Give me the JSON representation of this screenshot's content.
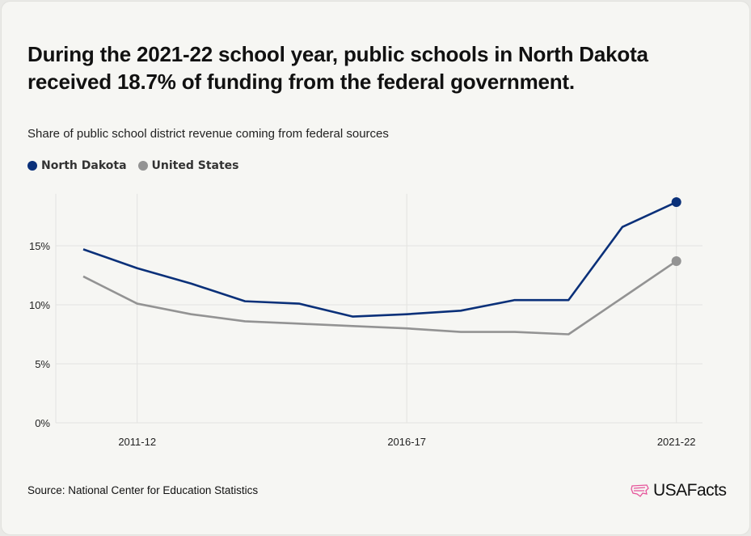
{
  "title": "During the 2021-22 school year, public schools in North Dakota received 18.7% of funding from the federal government.",
  "subtitle": "Share of public school district revenue coming from federal sources",
  "source": "Source: National Center for Education Statistics",
  "logo": "USAFacts",
  "chart_data": {
    "type": "line",
    "x": [
      "2010-11",
      "2011-12",
      "2012-13",
      "2013-14",
      "2014-15",
      "2015-16",
      "2016-17",
      "2017-18",
      "2018-19",
      "2019-20",
      "2020-21",
      "2021-22"
    ],
    "x_tick_labels": [
      "2011-12",
      "2016-17",
      "2021-22"
    ],
    "y_tick_labels": [
      "0%",
      "5%",
      "10%",
      "15%"
    ],
    "ylim": [
      0,
      19.4
    ],
    "grid": true,
    "legend_placement": "top-left",
    "series": [
      {
        "name": "North Dakota",
        "color": "#0a3079",
        "values": [
          14.7,
          13.1,
          11.8,
          10.3,
          10.1,
          9.0,
          9.2,
          9.5,
          10.4,
          10.4,
          16.6,
          18.7
        ]
      },
      {
        "name": "United States",
        "color": "#939393",
        "values": [
          12.4,
          10.1,
          9.2,
          8.6,
          8.4,
          8.2,
          8.0,
          7.7,
          7.7,
          7.5,
          10.6,
          13.7
        ]
      }
    ]
  }
}
